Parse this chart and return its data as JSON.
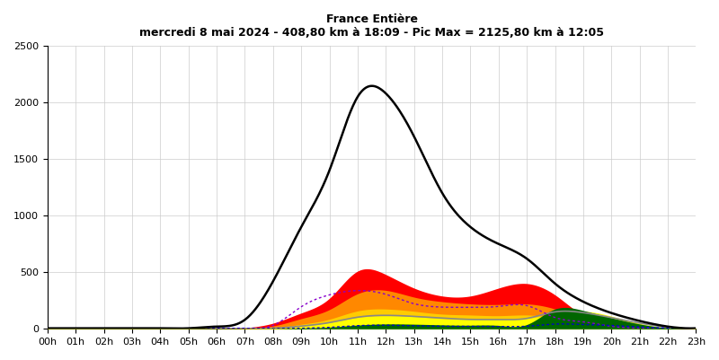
{
  "title_line1": "France Entière",
  "title_line2": "mercredi 8 mai 2024 - 408,80 km à 18:09 - Pic Max = 2125,80 km à 12:05",
  "xlim": [
    0,
    23
  ],
  "ylim": [
    0,
    2500
  ],
  "xtick_labels": [
    "00h",
    "01h",
    "02h",
    "03h",
    "04h",
    "05h",
    "06h",
    "07h",
    "08h",
    "09h",
    "10h",
    "11h",
    "12h",
    "13h",
    "14h",
    "15h",
    "16h",
    "17h",
    "18h",
    "19h",
    "20h",
    "21h",
    "22h",
    "23h"
  ],
  "ytick_values": [
    0,
    500,
    1000,
    1500,
    2000,
    2500
  ],
  "background_color": "#ffffff",
  "grid_color": "#cccccc",
  "hours": [
    0,
    1,
    2,
    3,
    4,
    5,
    6,
    7,
    8,
    9,
    10,
    11,
    12,
    13,
    14,
    15,
    16,
    17,
    18,
    19,
    20,
    21,
    22,
    23
  ],
  "black_line": [
    5,
    5,
    5,
    5,
    5,
    5,
    20,
    80,
    420,
    900,
    1400,
    2050,
    2080,
    1700,
    1200,
    900,
    750,
    620,
    400,
    240,
    140,
    70,
    20,
    5
  ],
  "area_red": [
    2,
    2,
    2,
    2,
    2,
    2,
    2,
    10,
    50,
    140,
    270,
    510,
    480,
    360,
    290,
    290,
    360,
    400,
    300,
    120,
    50,
    12,
    2,
    2
  ],
  "area_orange": [
    2,
    2,
    2,
    2,
    2,
    2,
    2,
    5,
    25,
    90,
    170,
    310,
    340,
    280,
    240,
    220,
    215,
    220,
    175,
    90,
    48,
    18,
    3,
    2
  ],
  "area_yellow": [
    2,
    2,
    2,
    2,
    2,
    2,
    2,
    3,
    10,
    40,
    85,
    158,
    175,
    155,
    130,
    122,
    116,
    122,
    100,
    68,
    33,
    13,
    3,
    2
  ],
  "area_bright_yellow": [
    2,
    2,
    2,
    2,
    2,
    2,
    2,
    2,
    5,
    22,
    55,
    100,
    116,
    108,
    90,
    85,
    84,
    92,
    130,
    155,
    112,
    48,
    8,
    2
  ],
  "area_green": [
    2,
    2,
    2,
    2,
    2,
    2,
    2,
    2,
    2,
    7,
    15,
    33,
    43,
    41,
    35,
    32,
    30,
    38,
    175,
    162,
    98,
    43,
    9,
    2
  ],
  "gray_line": [
    2,
    2,
    2,
    2,
    2,
    2,
    2,
    2,
    5,
    24,
    55,
    103,
    119,
    110,
    95,
    83,
    82,
    92,
    150,
    143,
    99,
    51,
    14,
    2
  ],
  "purple_dotted": [
    2,
    2,
    2,
    2,
    2,
    2,
    2,
    5,
    30,
    195,
    300,
    338,
    305,
    222,
    192,
    190,
    198,
    205,
    100,
    62,
    22,
    6,
    2,
    2
  ],
  "blue_dotted": [
    2,
    2,
    2,
    2,
    2,
    2,
    2,
    2,
    2,
    5,
    13,
    28,
    32,
    27,
    23,
    22,
    21,
    23,
    42,
    38,
    30,
    16,
    7,
    2
  ],
  "colors": {
    "red": "#ff0000",
    "orange": "#ff8800",
    "yellow": "#ffcc00",
    "bright_yellow": "#ffff00",
    "green": "#006600",
    "gray": "#888888",
    "purple": "#8800cc",
    "blue": "#0000cc",
    "black": "#000000"
  }
}
